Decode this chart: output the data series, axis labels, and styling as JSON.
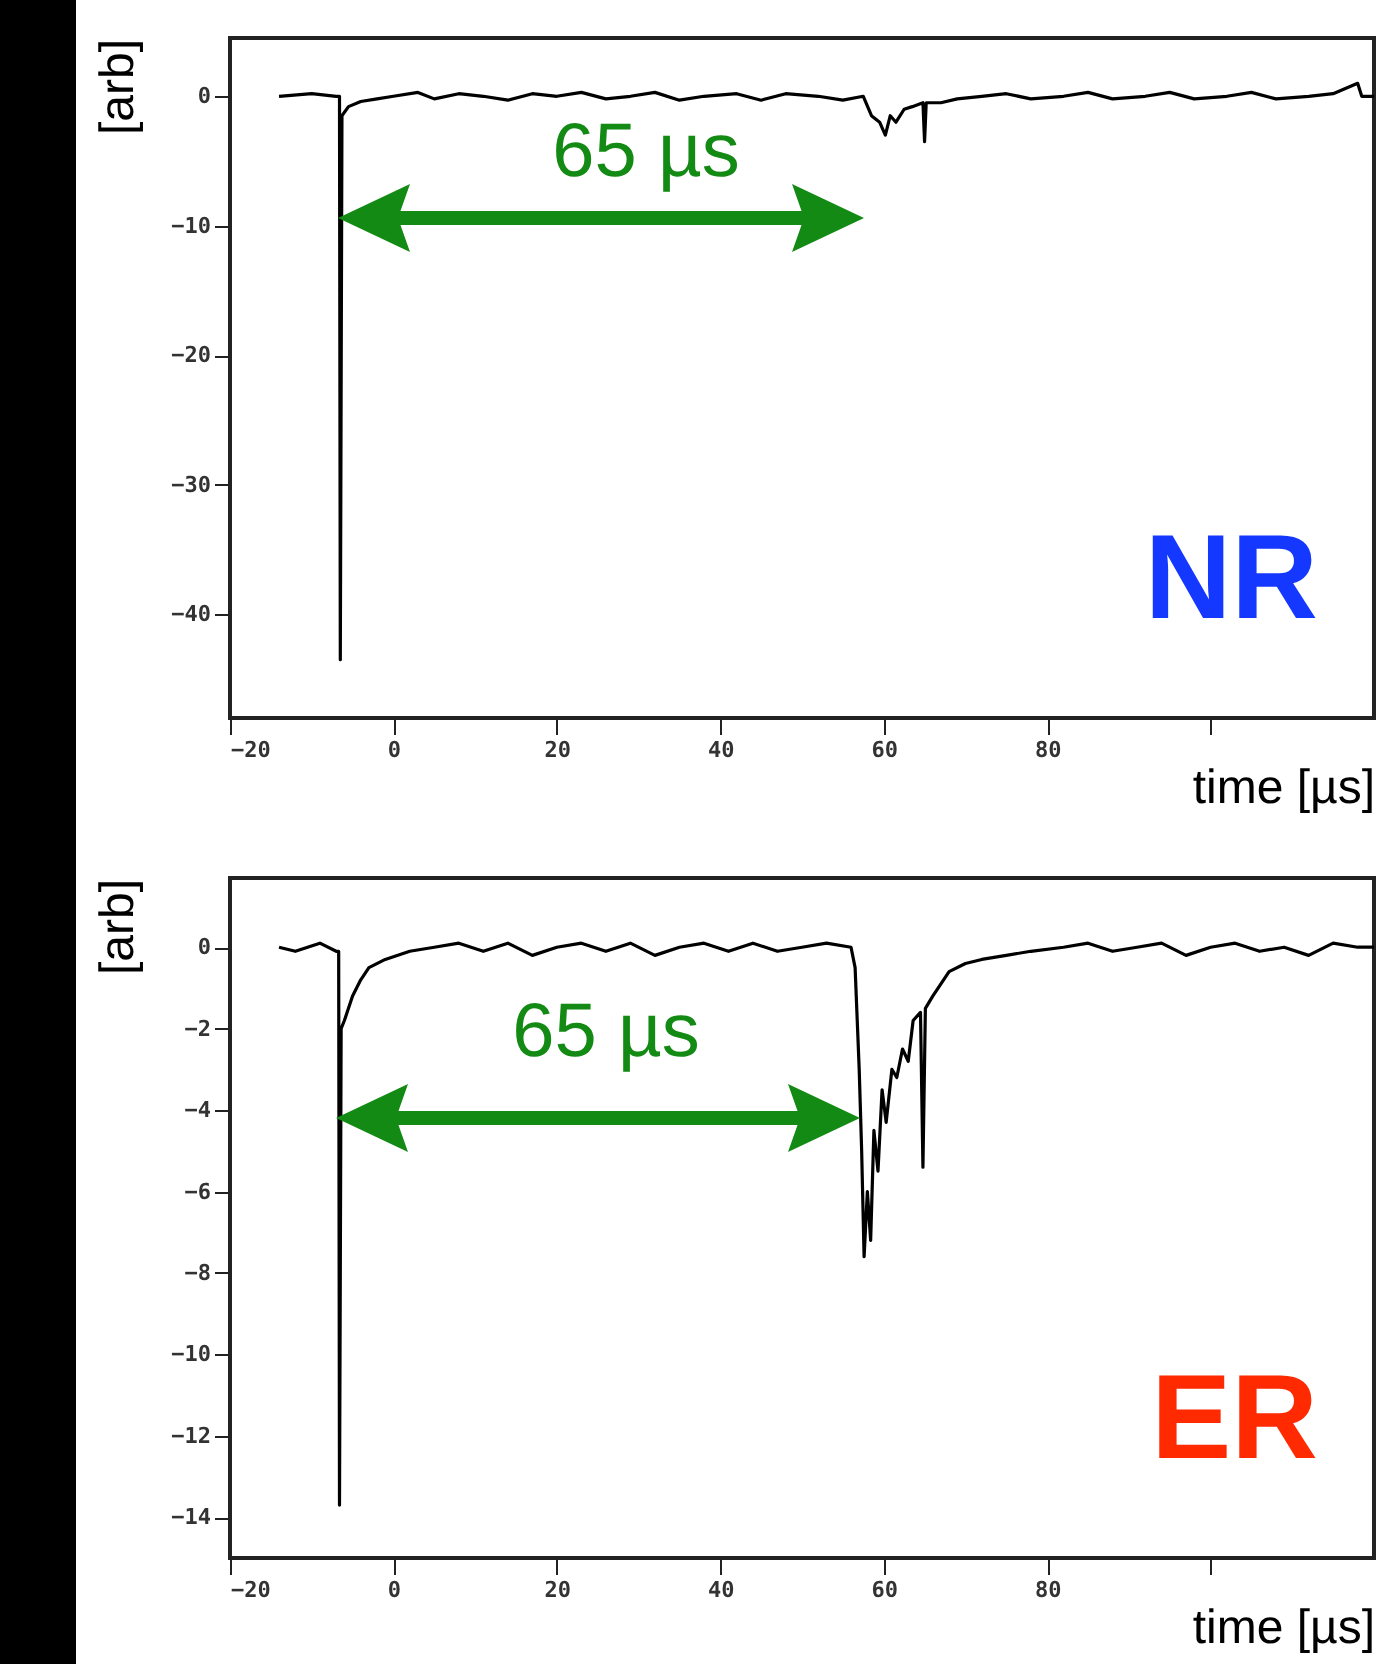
{
  "chart_data": [
    {
      "type": "line",
      "xlabel": "time [µs]",
      "ylabel": "[arb]",
      "xlim": [
        -20,
        120
      ],
      "ylim": [
        -48,
        4.5
      ],
      "xticks": [
        -20,
        0,
        20,
        40,
        60,
        80,
        {
          "value": 100,
          "label": null
        }
      ],
      "yticks": [
        0,
        -10,
        -20,
        -30,
        -40
      ],
      "annotations": [
        "65 µs",
        "NR"
      ],
      "series": [
        {
          "color": "#000000",
          "x": [
            -14,
            -10,
            -7,
            -6.6,
            -6.5,
            -6.3,
            -5.5,
            -4,
            -2,
            0,
            3,
            5,
            8,
            11,
            14,
            17,
            20,
            23,
            26,
            29,
            32,
            35,
            38,
            42,
            45,
            48,
            52,
            55,
            57.5,
            58.5,
            59.5,
            60.2,
            60.8,
            61.5,
            62.5,
            63.5,
            64.8,
            65,
            65.2,
            67,
            69,
            72,
            75,
            78,
            82,
            85,
            88,
            92,
            95,
            98,
            102,
            105,
            108,
            112,
            115,
            118,
            118.5,
            120
          ],
          "values": [
            0,
            0.2,
            0,
            0,
            -43.5,
            -1.5,
            -0.8,
            -0.4,
            -0.2,
            0,
            0.3,
            -0.2,
            0.2,
            0,
            -0.3,
            0.2,
            0,
            0.3,
            -0.2,
            0,
            0.3,
            -0.3,
            0,
            0.2,
            -0.3,
            0.2,
            0,
            -0.3,
            0,
            -1.5,
            -2,
            -3,
            -1.5,
            -2,
            -1,
            -0.8,
            -0.5,
            -3.5,
            -0.5,
            -0.5,
            -0.2,
            0,
            0.2,
            -0.2,
            0,
            0.3,
            -0.2,
            0,
            0.3,
            -0.2,
            0,
            0.3,
            -0.2,
            0,
            0.2,
            1,
            0,
            0
          ]
        }
      ]
    },
    {
      "type": "line",
      "xlabel": "time [µs]",
      "ylabel": "[arb]",
      "xlim": [
        -20,
        120
      ],
      "ylim": [
        -15,
        1.7
      ],
      "xticks": [
        -20,
        0,
        20,
        40,
        60,
        80,
        {
          "value": 100,
          "label": null
        }
      ],
      "yticks": [
        0,
        -2,
        -4,
        -6,
        -8,
        -10,
        -12,
        -14
      ],
      "annotations": [
        "65 µs",
        "ER"
      ],
      "series": [
        {
          "color": "#000000",
          "x": [
            -14,
            -12,
            -9,
            -7,
            -6.7,
            -6.6,
            -6.4,
            -6,
            -5,
            -4,
            -3,
            -1,
            2,
            5,
            8,
            11,
            14,
            17,
            20,
            23,
            26,
            29,
            32,
            35,
            38,
            41,
            44,
            47,
            50,
            53,
            56,
            56.5,
            57,
            57.3,
            57.6,
            58,
            58.4,
            58.8,
            59.3,
            59.8,
            60.3,
            61,
            61.6,
            62.3,
            63,
            63.6,
            64.5,
            64.8,
            65.1,
            66,
            67,
            68,
            70,
            72,
            75,
            78,
            82,
            85,
            88,
            91,
            94,
            97,
            100,
            103,
            106,
            109,
            112,
            115,
            118,
            120
          ],
          "values": [
            0,
            -0.1,
            0.1,
            -0.1,
            -0.1,
            -13.7,
            -2,
            -1.8,
            -1.2,
            -0.8,
            -0.5,
            -0.3,
            -0.1,
            0,
            0.1,
            -0.1,
            0.1,
            -0.2,
            0,
            0.1,
            -0.1,
            0.1,
            -0.2,
            0,
            0.1,
            -0.1,
            0.1,
            -0.1,
            0,
            0.1,
            0,
            -0.5,
            -3,
            -5,
            -7.6,
            -6,
            -7.2,
            -4.5,
            -5.5,
            -3.5,
            -4.3,
            -3,
            -3.2,
            -2.5,
            -2.8,
            -1.8,
            -1.6,
            -5.4,
            -1.5,
            -1.2,
            -0.9,
            -0.6,
            -0.4,
            -0.3,
            -0.2,
            -0.1,
            0,
            0.1,
            -0.1,
            0,
            0.1,
            -0.2,
            0,
            0.1,
            -0.1,
            0,
            -0.2,
            0.1,
            0,
            0
          ]
        }
      ]
    }
  ]
}
